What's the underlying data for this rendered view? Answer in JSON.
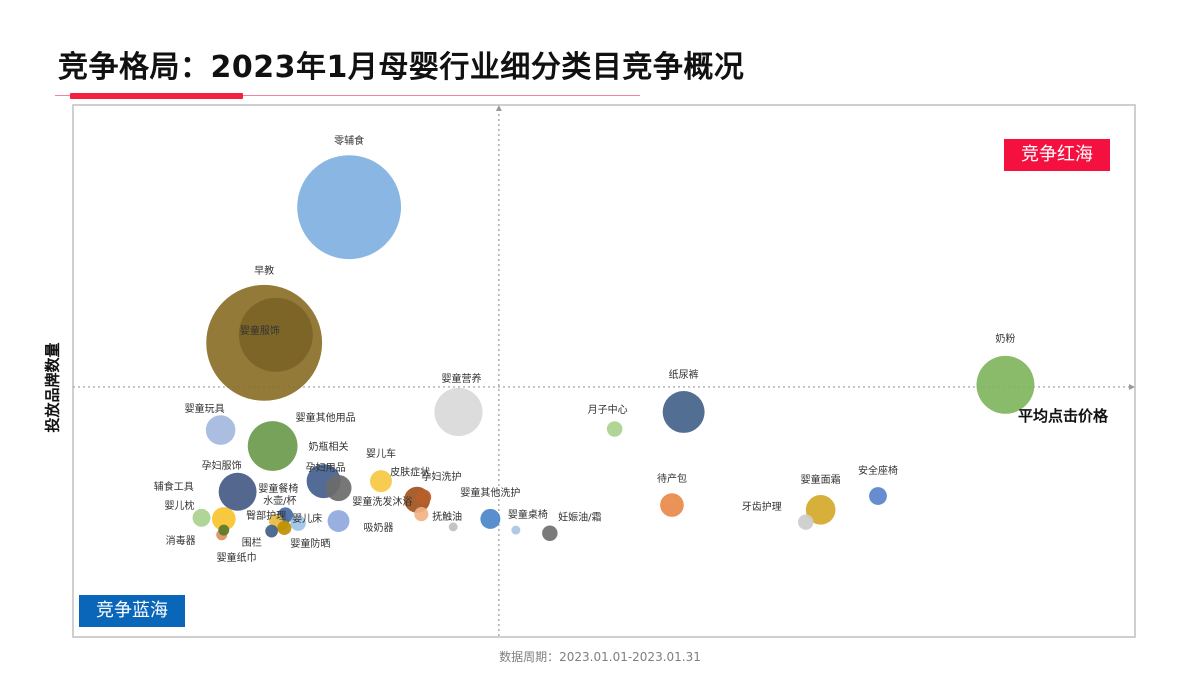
{
  "title": "竞争格局：2023年1月母婴行业细分类目竞争概况",
  "footer": "数据周期：2023.01.01-2023.01.31",
  "quadrants": {
    "red_ocean": "竞争红海",
    "blue_ocean": "竞争蓝海"
  },
  "colors": {
    "red_ocean": "#f5113f",
    "blue_ocean": "#0a66b8",
    "accent": "#f5203f"
  },
  "chart_data": {
    "type": "scatter",
    "subtype": "bubble",
    "xlabel": "平均点击价格",
    "ylabel": "投放品牌数量",
    "xlim": [
      0,
      100
    ],
    "ylim": [
      0,
      100
    ],
    "reference_lines": {
      "x": 40.1,
      "y": 47.0
    },
    "grid": false,
    "points": [
      {
        "name": "零辅食",
        "x": 26.0,
        "y": 80.8,
        "size": 270,
        "color": "#7fb0e0"
      },
      {
        "name": "早教",
        "x": 18.0,
        "y": 55.3,
        "size": 336,
        "color": "#8b6f28"
      },
      {
        "name": "婴童服饰",
        "x": 19.1,
        "y": 56.8,
        "size": 137,
        "color": "#7a6326"
      },
      {
        "name": "婴童营养",
        "x": 36.3,
        "y": 42.3,
        "size": 58,
        "color": "#d9d9d9"
      },
      {
        "name": "月子中心",
        "x": 51.0,
        "y": 39.1,
        "size": 6,
        "color": "#a9d18e"
      },
      {
        "name": "纸尿裤",
        "x": 57.5,
        "y": 42.3,
        "size": 44,
        "color": "#44628a"
      },
      {
        "name": "奶粉",
        "x": 87.8,
        "y": 47.4,
        "size": 84,
        "color": "#7fb55e"
      },
      {
        "name": "婴童玩具",
        "x": 13.9,
        "y": 38.9,
        "size": 22,
        "color": "#a4b9e0"
      },
      {
        "name": "婴童其他用品",
        "x": 18.8,
        "y": 35.9,
        "size": 62,
        "color": "#6a9a4c"
      },
      {
        "name": "奶瓶相关",
        "x": 25.0,
        "y": 28.0,
        "size": 17,
        "color": "#6b6b6b"
      },
      {
        "name": "孕妇用品",
        "x": 23.6,
        "y": 29.3,
        "size": 29,
        "color": "#44608e"
      },
      {
        "name": "婴儿车",
        "x": 29.0,
        "y": 29.3,
        "size": 12,
        "color": "#f5c842"
      },
      {
        "name": "皮肤症状",
        "x": 32.4,
        "y": 25.8,
        "size": 17,
        "color": "#a0521e"
      },
      {
        "name": "孕妇洗护",
        "x": 33.0,
        "y": 26.3,
        "size": 6,
        "color": "#b8602a"
      },
      {
        "name": "婴童洗发沐浴",
        "x": 32.8,
        "y": 23.1,
        "size": 5,
        "color": "#f4b183"
      },
      {
        "name": "抚触油",
        "x": 35.8,
        "y": 20.7,
        "size": 2,
        "color": "#bfbfbf"
      },
      {
        "name": "婴童其他洗护",
        "x": 39.3,
        "y": 22.2,
        "size": 10,
        "color": "#4a86c8"
      },
      {
        "name": "婴童桌椅",
        "x": 41.7,
        "y": 20.1,
        "size": 2,
        "color": "#a9c4e8"
      },
      {
        "name": "妊娠油/霜",
        "x": 44.9,
        "y": 19.5,
        "size": 6,
        "color": "#707070"
      },
      {
        "name": "吸奶器",
        "x": 25.0,
        "y": 21.8,
        "size": 12,
        "color": "#8fa8dc"
      },
      {
        "name": "孕妇服饰",
        "x": 15.5,
        "y": 27.3,
        "size": 36,
        "color": "#445a85"
      },
      {
        "name": "辅食工具",
        "x": 14.2,
        "y": 22.2,
        "size": 14,
        "color": "#f7c42f"
      },
      {
        "name": "婴儿枕",
        "x": 12.1,
        "y": 22.4,
        "size": 8,
        "color": "#a9d18e"
      },
      {
        "name": "消毒器",
        "x": 14.0,
        "y": 19.2,
        "size": 3,
        "color": "#e09060"
      },
      {
        "name": "围栏",
        "x": 14.2,
        "y": 20.1,
        "size": 3,
        "color": "#5a7a2a"
      },
      {
        "name": "婴童餐椅",
        "x": 20.0,
        "y": 22.9,
        "size": 6,
        "color": "#446aa8"
      },
      {
        "name": "水壶/杯",
        "x": 19.1,
        "y": 21.8,
        "size": 5,
        "color": "#e8c050"
      },
      {
        "name": "臀部护理",
        "x": 19.5,
        "y": 21.6,
        "size": 8,
        "color": "#d4a82a"
      },
      {
        "name": "婴儿床",
        "x": 21.2,
        "y": 21.4,
        "size": 6,
        "color": "#9dc3e6"
      },
      {
        "name": "婴童纸巾",
        "x": 18.7,
        "y": 19.9,
        "size": 4,
        "color": "#40608a"
      },
      {
        "name": "婴童防晒",
        "x": 19.9,
        "y": 20.5,
        "size": 5,
        "color": "#bf9000"
      },
      {
        "name": "待产包",
        "x": 56.4,
        "y": 24.8,
        "size": 14,
        "color": "#e8894a"
      },
      {
        "name": "婴童面霜",
        "x": 70.4,
        "y": 23.9,
        "size": 22,
        "color": "#d4a82a"
      },
      {
        "name": "牙齿护理",
        "x": 69.0,
        "y": 21.6,
        "size": 6,
        "color": "#cccccc"
      },
      {
        "name": "安全座椅",
        "x": 75.8,
        "y": 26.5,
        "size": 8,
        "color": "#5b82cc"
      }
    ]
  }
}
